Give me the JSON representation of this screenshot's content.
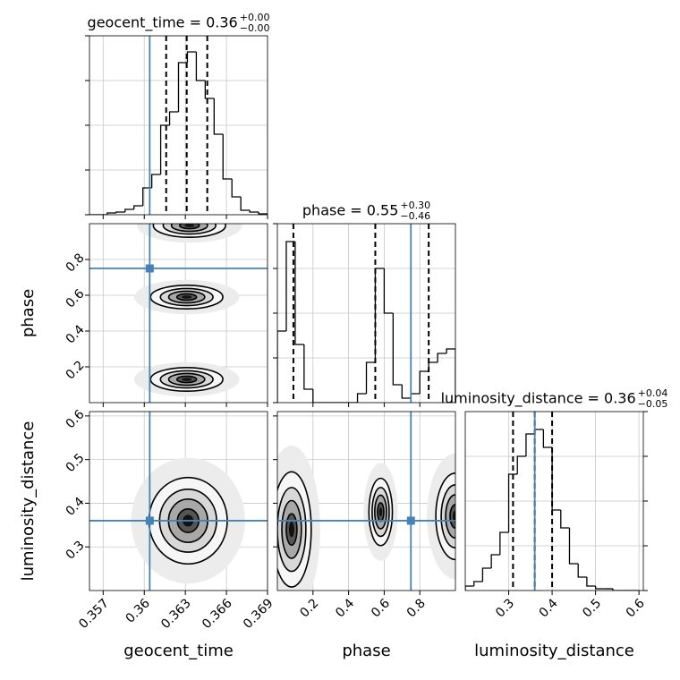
{
  "chart_data": [
    {
      "type": "histogram",
      "title": "geocent_time = 0.36",
      "title_upper": "+0.00",
      "title_lower": "−0.00",
      "bins": [
        0.356,
        0.35665,
        0.3573,
        0.35795,
        0.3586,
        0.35925,
        0.3599,
        0.36055,
        0.3612,
        0.36185,
        0.3625,
        0.36315,
        0.3638,
        0.36445,
        0.3651,
        0.36575,
        0.3664,
        0.36705,
        0.3677,
        0.36835,
        0.369
      ],
      "counts": [
        0,
        0,
        2,
        3,
        6,
        10,
        30,
        45,
        100,
        115,
        170,
        182,
        150,
        130,
        90,
        40,
        20,
        5,
        3,
        1
      ],
      "ylim": [
        0,
        200
      ],
      "yticks": [
        0,
        50,
        100,
        150,
        200
      ],
      "ytick_side": "left",
      "quantiles": [
        0.3616,
        0.3631,
        0.3646
      ],
      "truth": 0.3604,
      "color": "#000000",
      "truth_color": "#4682b4",
      "grid": true
    },
    {
      "type": "hist2d",
      "ylabel": "phase",
      "ylim": [
        0,
        1
      ],
      "yticks": [
        0.2,
        0.4,
        0.6,
        0.8
      ],
      "clusters": [
        {
          "x": 0.3631,
          "y": 0.13,
          "sx": 0.0012,
          "sy": 0.03
        },
        {
          "x": 0.3631,
          "y": 0.59,
          "sx": 0.0012,
          "sy": 0.03
        },
        {
          "x": 0.3633,
          "y": 0.99,
          "sx": 0.0012,
          "sy": 0.03
        }
      ],
      "truth_x": 0.3604,
      "truth_y": 0.75,
      "truth_color": "#4682b4",
      "grid": true
    },
    {
      "type": "histogram",
      "title": "phase = 0.55",
      "title_upper": "+0.30",
      "title_lower": "−0.46",
      "bins": [
        0,
        0.05,
        0.1,
        0.15,
        0.2,
        0.25,
        0.3,
        0.35,
        0.4,
        0.45,
        0.5,
        0.55,
        0.6,
        0.65,
        0.7,
        0.75,
        0.8,
        0.85,
        0.9,
        0.95,
        1.0
      ],
      "counts": [
        80,
        180,
        65,
        15,
        0,
        0,
        0,
        0,
        0,
        10,
        45,
        150,
        100,
        20,
        5,
        10,
        35,
        45,
        55,
        60
      ],
      "ylim": [
        0,
        200
      ],
      "yticks": [
        0,
        50,
        100,
        150,
        200
      ],
      "ytick_side": "left",
      "quantiles": [
        0.09,
        0.55,
        0.85
      ],
      "truth": 0.75,
      "color": "#000000",
      "truth_color": "#4682b4",
      "grid": true
    },
    {
      "type": "hist2d",
      "xlabel": "geocent_time",
      "xlim": [
        0.356,
        0.369
      ],
      "xticks": [
        0.357,
        0.36,
        0.363,
        0.366,
        0.369
      ],
      "ylabel": "luminosity_distance",
      "ylim": [
        0.2,
        0.61
      ],
      "yticks": [
        0.3,
        0.4,
        0.5,
        0.6
      ],
      "clusters": [
        {
          "x": 0.3632,
          "y": 0.36,
          "sx": 0.0013,
          "sy": 0.045
        }
      ],
      "truth_x": 0.3604,
      "truth_y": 0.36,
      "truth_color": "#4682b4",
      "grid": true
    },
    {
      "type": "hist2d",
      "xlabel": "phase",
      "xlim": [
        0,
        1
      ],
      "xticks": [
        0.2,
        0.4,
        0.6,
        0.8
      ],
      "clusters": [
        {
          "x": 0.08,
          "y": 0.34,
          "sx": 0.05,
          "sy": 0.06
        },
        {
          "x": 0.58,
          "y": 0.38,
          "sx": 0.03,
          "sy": 0.035
        },
        {
          "x": 1.0,
          "y": 0.37,
          "sx": 0.05,
          "sy": 0.045
        }
      ],
      "truth_x": 0.75,
      "truth_y": 0.36,
      "truth_color": "#4682b4",
      "grid": true
    },
    {
      "type": "histogram",
      "title": "luminosity_distance = 0.36",
      "title_upper": "+0.04",
      "title_lower": "−0.05",
      "xlabel": "luminosity_distance",
      "xlim": [
        0.2,
        0.61
      ],
      "xticks": [
        0.3,
        0.4,
        0.5,
        0.6
      ],
      "bins": [
        0.2,
        0.22,
        0.24,
        0.26,
        0.28,
        0.3,
        0.32,
        0.34,
        0.36,
        0.38,
        0.4,
        0.42,
        0.44,
        0.46,
        0.48,
        0.5,
        0.52,
        0.54,
        0.56,
        0.58,
        0.6
      ],
      "counts": [
        5,
        10,
        25,
        40,
        65,
        130,
        150,
        175,
        180,
        160,
        90,
        70,
        30,
        15,
        5,
        2,
        2,
        0,
        0,
        0
      ],
      "ylim": [
        0,
        200
      ],
      "yticks": [
        0,
        50,
        100,
        150,
        200
      ],
      "ytick_side": "right",
      "quantiles": [
        0.31,
        0.36,
        0.4
      ],
      "truth": 0.36,
      "color": "#000000",
      "truth_color": "#4682b4",
      "grid": true
    }
  ]
}
